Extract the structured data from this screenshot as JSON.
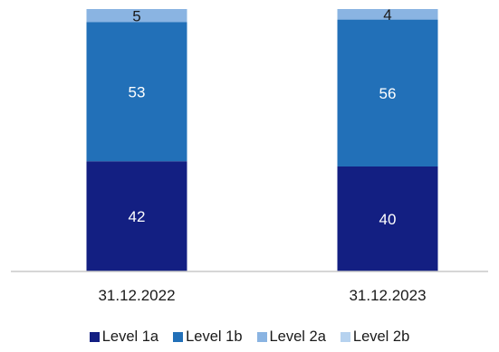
{
  "chart_data": {
    "type": "bar",
    "stacked": true,
    "categories": [
      "31.12.2022",
      "31.12.2023"
    ],
    "series": [
      {
        "name": "Level 1a",
        "color": "#131f82",
        "values": [
          42,
          40
        ]
      },
      {
        "name": "Level 1b",
        "color": "#2270b8",
        "values": [
          53,
          56
        ]
      },
      {
        "name": "Level 2a",
        "color": "#8ab4e2",
        "values": [
          5,
          4
        ]
      },
      {
        "name": "Level 2b",
        "color": "#b6d2ef",
        "values": [
          0,
          0
        ]
      }
    ],
    "ylim": [
      0,
      100
    ],
    "grid": false,
    "legend_position": "bottom"
  }
}
